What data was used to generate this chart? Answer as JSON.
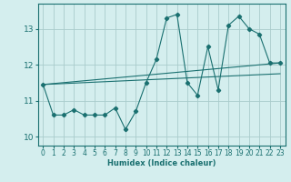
{
  "xlabel": "Humidex (Indice chaleur)",
  "ylabel": "",
  "bg_color": "#d4eeee",
  "line_color": "#1a7070",
  "grid_color": "#aacccc",
  "xlim": [
    -0.5,
    23.5
  ],
  "ylim": [
    9.75,
    13.7
  ],
  "xticks": [
    0,
    1,
    2,
    3,
    4,
    5,
    6,
    7,
    8,
    9,
    10,
    11,
    12,
    13,
    14,
    15,
    16,
    17,
    18,
    19,
    20,
    21,
    22,
    23
  ],
  "yticks": [
    10,
    11,
    12,
    13
  ],
  "series_x": [
    0,
    1,
    2,
    3,
    4,
    5,
    6,
    7,
    8,
    9,
    10,
    11,
    12,
    13,
    14,
    15,
    16,
    17,
    18,
    19,
    20,
    21,
    22,
    23
  ],
  "series_y": [
    11.45,
    10.6,
    10.6,
    10.75,
    10.6,
    10.6,
    10.6,
    10.8,
    10.2,
    10.7,
    11.5,
    12.15,
    13.3,
    13.4,
    11.5,
    11.15,
    12.5,
    11.3,
    13.1,
    13.35,
    13.0,
    12.85,
    12.05,
    12.05
  ],
  "trend1_x": [
    0,
    23
  ],
  "trend1_y": [
    11.45,
    12.05
  ],
  "trend2_x": [
    0,
    23
  ],
  "trend2_y": [
    11.45,
    11.75
  ]
}
